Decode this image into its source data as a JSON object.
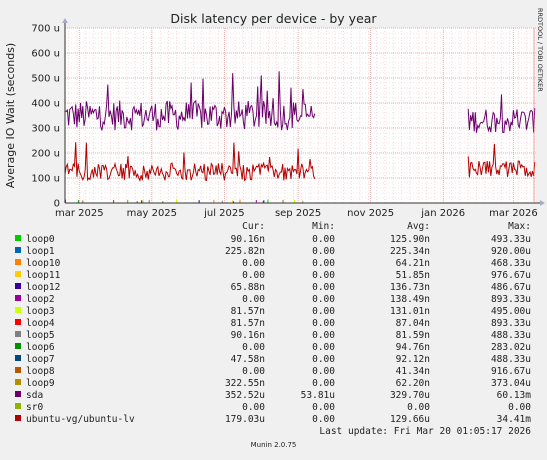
{
  "chart_data": {
    "type": "line",
    "title": "Disk latency per device - by year",
    "ylabel": "Average IO Wait (seconds)",
    "side_label": "RRDTOOL / TOBI OETIKER",
    "ylim": [
      0,
      0.0007
    ],
    "y_ticks": [
      {
        "value": 0,
        "label": "0"
      },
      {
        "value": 0.0001,
        "label": "100 u"
      },
      {
        "value": 0.0002,
        "label": "200 u"
      },
      {
        "value": 0.0003,
        "label": "300 u"
      },
      {
        "value": 0.0004,
        "label": "400 u"
      },
      {
        "value": 0.0005,
        "label": "500 u"
      },
      {
        "value": 0.0006,
        "label": "600 u"
      },
      {
        "value": 0.0007,
        "label": "700 u"
      }
    ],
    "x_range": [
      "2025-02-17",
      "2026-03-20"
    ],
    "x_ticks": [
      {
        "date": "2025-03-01",
        "label": "mar 2025"
      },
      {
        "date": "2025-05-01",
        "label": "may 2025"
      },
      {
        "date": "2025-07-01",
        "label": "jul 2025"
      },
      {
        "date": "2025-09-01",
        "label": "sep 2025"
      },
      {
        "date": "2025-11-01",
        "label": "nov 2025"
      },
      {
        "date": "2026-01-01",
        "label": "jan 2026"
      },
      {
        "date": "2026-03-01",
        "label": "mar 2026"
      }
    ],
    "grid": true,
    "legend_headers": {
      "cur": "Cur:",
      "min": "Min:",
      "avg": "Avg:",
      "max": "Max:"
    },
    "series": [
      {
        "name": "loop0",
        "color": "#00cc00",
        "cur": "90.16n",
        "min": "0.00",
        "avg": "125.90n",
        "max": "493.33u"
      },
      {
        "name": "loop1",
        "color": "#0066b3",
        "cur": "225.82n",
        "min": "0.00",
        "avg": "225.34n",
        "max": "920.00u"
      },
      {
        "name": "loop10",
        "color": "#ff8000",
        "cur": "0.00",
        "min": "0.00",
        "avg": "64.21n",
        "max": "468.33u"
      },
      {
        "name": "loop11",
        "color": "#ffcc00",
        "cur": "0.00",
        "min": "0.00",
        "avg": "51.85n",
        "max": "976.67u"
      },
      {
        "name": "loop12",
        "color": "#330099",
        "cur": "65.88n",
        "min": "0.00",
        "avg": "136.73n",
        "max": "486.67u"
      },
      {
        "name": "loop2",
        "color": "#990099",
        "cur": "0.00",
        "min": "0.00",
        "avg": "138.49n",
        "max": "893.33u"
      },
      {
        "name": "loop3",
        "color": "#ccff00",
        "cur": "81.57n",
        "min": "0.00",
        "avg": "131.01n",
        "max": "495.00u"
      },
      {
        "name": "loop4",
        "color": "#ff0000",
        "cur": "81.57n",
        "min": "0.00",
        "avg": "87.04n",
        "max": "893.33u"
      },
      {
        "name": "loop5",
        "color": "#808080",
        "cur": "90.16n",
        "min": "0.00",
        "avg": "81.59n",
        "max": "488.33u"
      },
      {
        "name": "loop6",
        "color": "#008f00",
        "cur": "0.00",
        "min": "0.00",
        "avg": "94.76n",
        "max": "283.02u"
      },
      {
        "name": "loop7",
        "color": "#00487d",
        "cur": "47.58n",
        "min": "0.00",
        "avg": "92.12n",
        "max": "488.33u"
      },
      {
        "name": "loop8",
        "color": "#b35a00",
        "cur": "0.00",
        "min": "0.00",
        "avg": "41.34n",
        "max": "916.67u"
      },
      {
        "name": "loop9",
        "color": "#b38f00",
        "cur": "322.55n",
        "min": "0.00",
        "avg": "62.20n",
        "max": "373.04u"
      },
      {
        "name": "sda",
        "color": "#6b006b",
        "cur": "352.52u",
        "min": "53.81u",
        "avg": "329.70u",
        "max": "60.13m"
      },
      {
        "name": "sr0",
        "color": "#8fb300",
        "cur": "0.00",
        "min": "0.00",
        "avg": "0.00",
        "max": "0.00"
      },
      {
        "name": "ubuntu-vg/ubuntu-lv",
        "color": "#b30000",
        "cur": "179.03u",
        "min": "0.00",
        "avg": "129.66u",
        "max": "34.41m"
      }
    ],
    "last_update": "Last update: Fri Mar 20 01:05:17 2026",
    "footer": "Munin 2.0.75"
  }
}
